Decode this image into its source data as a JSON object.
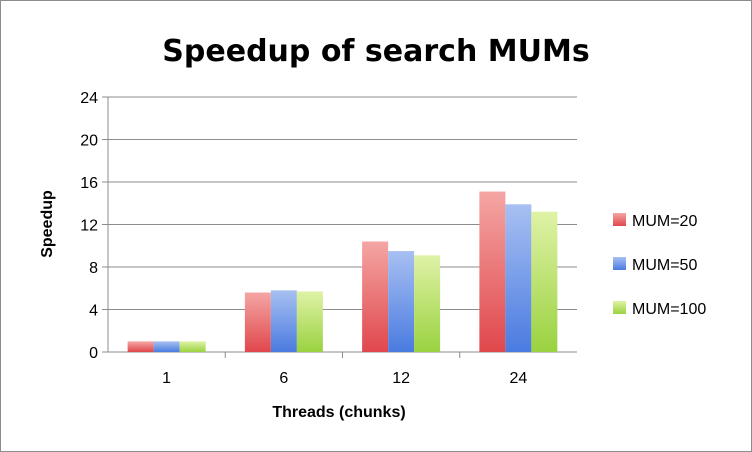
{
  "chart_data": {
    "type": "bar",
    "title": "Speedup of search MUMs",
    "xlabel": "Threads (chunks)",
    "ylabel": "Speedup",
    "categories": [
      "1",
      "6",
      "12",
      "24"
    ],
    "ylim": [
      0,
      24
    ],
    "yticks": [
      0,
      4,
      8,
      12,
      16,
      20,
      24
    ],
    "grid": true,
    "legend_position": "right",
    "series": [
      {
        "name": "MUM=20",
        "values": [
          1.0,
          5.6,
          10.4,
          15.1
        ],
        "color": "#e0474c",
        "color_light": "#f4a6a4"
      },
      {
        "name": "MUM=50",
        "values": [
          1.0,
          5.8,
          9.5,
          13.9
        ],
        "color": "#4a7be0",
        "color_light": "#a8c0f2"
      },
      {
        "name": "MUM=100",
        "values": [
          1.0,
          5.7,
          9.1,
          13.2
        ],
        "color": "#9ad240",
        "color_light": "#dff2a6"
      }
    ]
  }
}
